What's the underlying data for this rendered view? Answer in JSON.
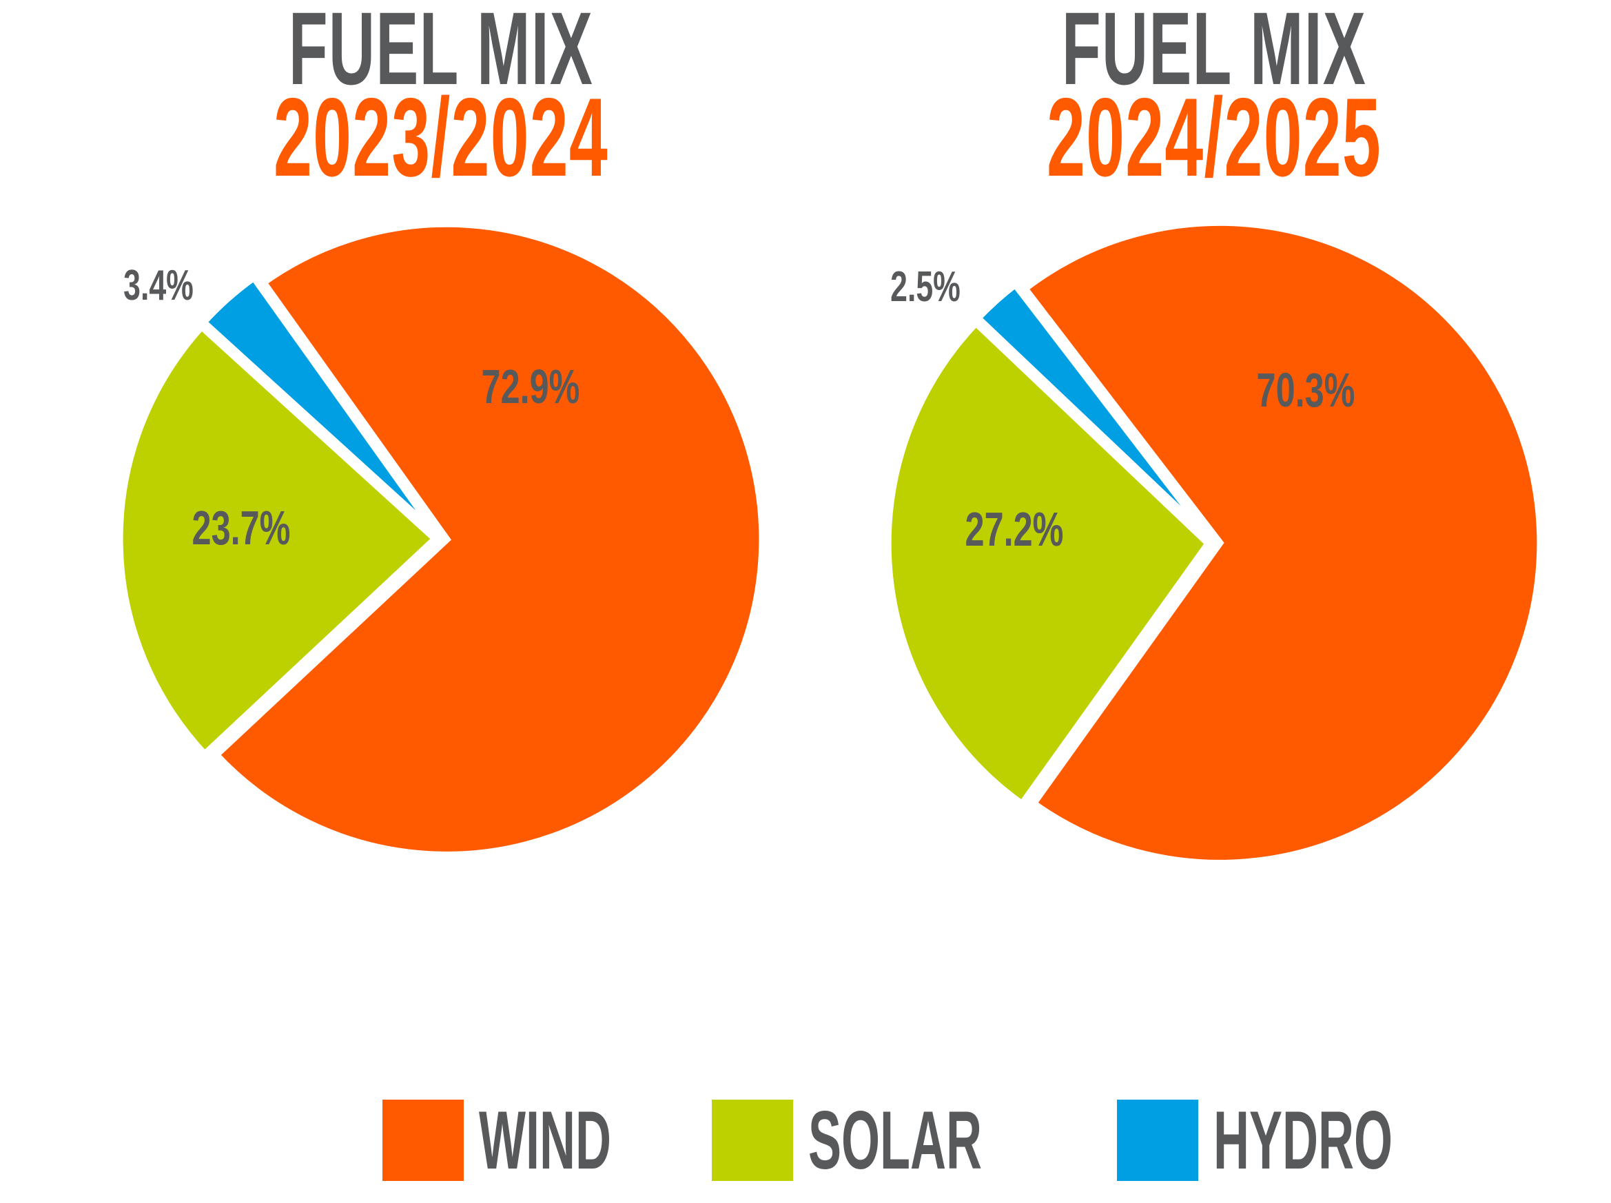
{
  "colors": {
    "wind": "#ff5a00",
    "solar": "#bdd000",
    "hydro": "#009fe3",
    "text": "#58595b",
    "title_accent": "#ff5a00"
  },
  "legend": [
    {
      "label": "WIND",
      "color": "#ff5a00"
    },
    {
      "label": "SOLAR",
      "color": "#bdd000"
    },
    {
      "label": "HYDRO",
      "color": "#009fe3"
    }
  ],
  "chart_data": [
    {
      "type": "pie",
      "title": "FUEL MIX",
      "subtitle": "2023/2024",
      "categories": [
        "Wind",
        "Solar",
        "Hydro"
      ],
      "values": [
        72.9,
        23.7,
        3.4
      ],
      "labels": [
        "72.9%",
        "23.7%",
        "3.4%"
      ],
      "colors": [
        "#ff5a00",
        "#bdd000",
        "#009fe3"
      ],
      "legend": "bottom"
    },
    {
      "type": "pie",
      "title": "FUEL MIX",
      "subtitle": "2024/2025",
      "categories": [
        "Wind",
        "Solar",
        "Hydro"
      ],
      "values": [
        70.3,
        27.2,
        2.5
      ],
      "labels": [
        "70.3%",
        "27.2%",
        "2.5%"
      ],
      "colors": [
        "#ff5a00",
        "#bdd000",
        "#009fe3"
      ],
      "legend": "bottom"
    }
  ]
}
